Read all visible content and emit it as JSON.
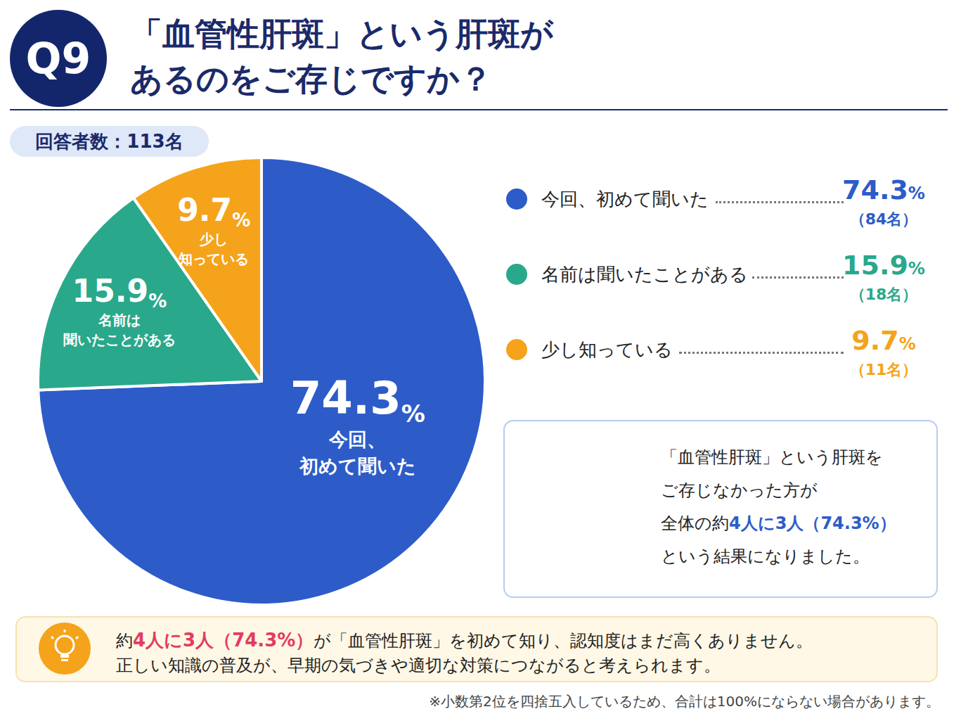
{
  "header": {
    "badge": "Q9",
    "title": [
      "「血管性肝斑」という肝斑が",
      "あるのをご存じですか？"
    ],
    "respondents": "回答者数：113名"
  },
  "chart_data": {
    "type": "pie",
    "categories": [
      "今回、初めて聞いた",
      "名前は聞いたことがある",
      "少し知っている"
    ],
    "values": [
      74.3,
      15.9,
      9.7
    ],
    "value_labels": [
      "74.3%",
      "15.9%",
      "9.7%"
    ],
    "count_labels": [
      "（84名）",
      "（18名）",
      "（11名）"
    ],
    "slice_labels": [
      "今回、\n初めて聞いた",
      "名前は\n聞いたことがある",
      "少し\n知っている"
    ],
    "colors": [
      "#2d5cc9",
      "#2aa88b",
      "#f5a31b"
    ],
    "data_labels": true,
    "legend": "right"
  },
  "callout": {
    "lines": [
      [
        {
          "text": "「血管性肝斑」という肝斑を"
        }
      ],
      [
        {
          "text": "ご存じなかった方が"
        }
      ],
      [
        {
          "text": "全体の約"
        },
        {
          "text": "4人に3人（74.3%）",
          "emphasis": true
        }
      ],
      [
        {
          "text": "という結果になりました。"
        }
      ]
    ]
  },
  "summary": {
    "lines": [
      [
        {
          "text": "約"
        },
        {
          "text": "4人に3人（74.3%）",
          "emphasis": true
        },
        {
          "text": "が「血管性肝斑」を初めて知り、認知度はまだ高くありません。"
        }
      ],
      [
        {
          "text": "正しい知識の普及が、早期の気づきや適切な対策につながると考えられます。"
        }
      ]
    ]
  },
  "footnote": "※小数第2位を四捨五入しているため、合計は100%にならない場合があります。"
}
